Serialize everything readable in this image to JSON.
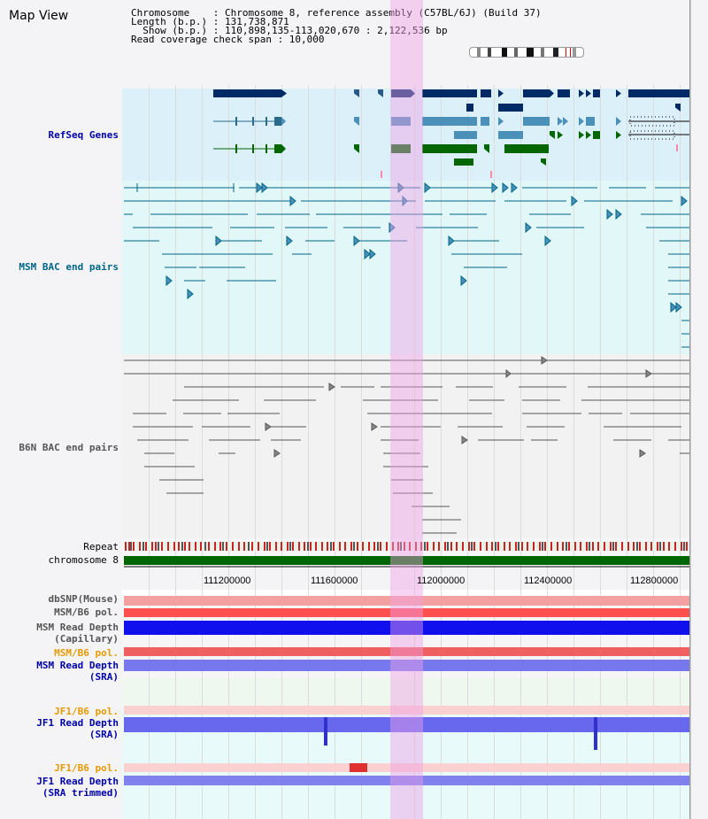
{
  "title": "Map View",
  "info": {
    "line1": "Chromosome    : Chromosome 8, reference assembly (C57BL/6J) (Build 37)",
    "line2": "Length (b.p.) : 131,738,871",
    "line3": "  Show (b.p.) : 110,898,135-113,020,670 : 2,122,536 bp",
    "line4": "Read coverage check span : 10,000"
  },
  "tracks": {
    "refseq": {
      "label": "RefSeq Genes",
      "color": "#0000aa"
    },
    "msm_bac": {
      "label": "MSM BAC end pairs",
      "color": "#006688"
    },
    "b6n_bac": {
      "label": "B6N BAC end pairs",
      "color": "#555555"
    },
    "repeat": {
      "label": "Repeat"
    },
    "chromosome": {
      "label": "chromosome 8"
    },
    "dbsnp": {
      "label": "dbSNP(Mouse)"
    },
    "msm_b6_pol1": {
      "label": "MSM/B6 pol."
    },
    "msm_depth_cap1": {
      "label": "MSM Read Depth"
    },
    "msm_depth_cap2": {
      "label": "(Capillary)"
    },
    "msm_b6_pol2": {
      "label": "MSM/B6 pol."
    },
    "msm_depth_sra1": {
      "label": "MSM Read Depth"
    },
    "msm_depth_sra2": {
      "label": "(SRA)"
    },
    "jf1_b6_pol1": {
      "label": "JF1/B6 pol."
    },
    "jf1_depth_sra1": {
      "label": "JF1 Read Depth"
    },
    "jf1_depth_sra2": {
      "label": "(SRA)"
    },
    "jf1_b6_pol2": {
      "label": "JF1/B6 pol."
    },
    "jf1_depth_tr1": {
      "label": "JF1 Read Depth"
    },
    "jf1_depth_tr2": {
      "label": "(SRA trimmed)"
    }
  },
  "axis": {
    "ticks": [
      "111200000",
      "111600000",
      "112000000",
      "112400000",
      "112800000"
    ]
  },
  "colors": {
    "refseq_dark": "#002a66",
    "refseq_mid": "#4a90b8",
    "refseq_green": "#006600",
    "highlight": "#f0a0e6",
    "depth_blue": "#1010ee",
    "depth_sra": "#7878ee",
    "pol_red": "#ee2222",
    "pol_orange": "#e89a00"
  }
}
